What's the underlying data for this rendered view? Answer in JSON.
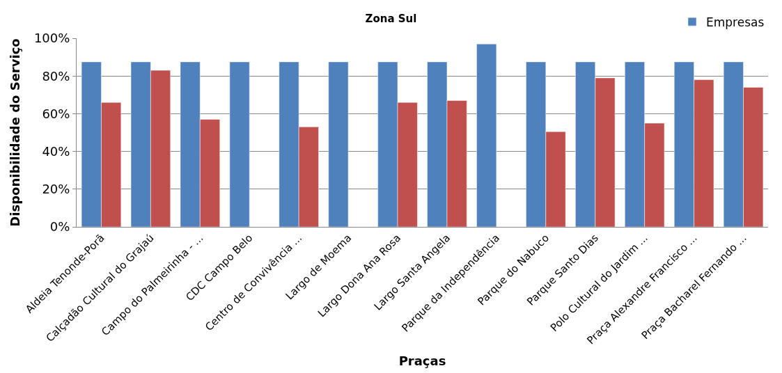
{
  "chart_data": {
    "type": "bar",
    "title": "Zona Sul",
    "xlabel": "Praças",
    "ylabel": "Disponibilidade do Serviço",
    "categories": [
      "Aldeia Tenonde-Porã",
      "Calçadão Cultural do Grajaú",
      "Campo do Palmeirinha - ...",
      "CDC Campo Belo",
      "Centro de Convivência ...",
      "Largo de Moema",
      "Largo Dona Ana Rosa",
      "Largo Santa Angela",
      "Parque da Independência",
      "Parque do Nabuco",
      "Parque Santo Dias",
      "Polo Cultural do Jardim ...",
      "Praça Alexandre Francisco ...",
      "Praça Bacharel Fernando ..."
    ],
    "series": [
      {
        "name": "Empresas",
        "color": "#4f81bd",
        "values": [
          87.5,
          87.5,
          87.5,
          87.5,
          87.5,
          87.5,
          87.5,
          87.5,
          97,
          87.5,
          87.5,
          87.5,
          87.5,
          87.5
        ]
      },
      {
        "color": "#c0504d",
        "values": [
          66,
          83,
          57,
          null,
          53,
          null,
          66,
          67,
          null,
          50.5,
          79,
          55,
          78,
          74
        ]
      }
    ],
    "ylim": [
      0,
      100
    ],
    "yticks": [
      {
        "value": 0,
        "label": "0%"
      },
      {
        "value": 20,
        "label": "20%"
      },
      {
        "value": 40,
        "label": "40%"
      },
      {
        "value": 60,
        "label": "60%"
      },
      {
        "value": 80,
        "label": "80%"
      },
      {
        "value": 100,
        "label": "100%"
      }
    ],
    "grid": "y",
    "legend": "top right"
  }
}
